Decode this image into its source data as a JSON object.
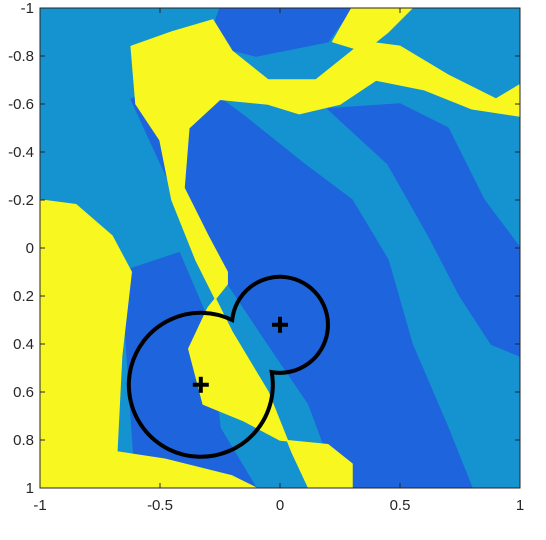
{
  "chart_data": {
    "type": "heatmap",
    "title": "",
    "xlabel": "",
    "ylabel": "",
    "xlim": [
      -1,
      1
    ],
    "ylim": [
      1,
      -1
    ],
    "y_reversed": true,
    "x_ticks": [
      -1,
      -0.5,
      0,
      0.5,
      1
    ],
    "x_tick_labels": [
      "-1",
      "-0.5",
      "0",
      "0.5",
      "1"
    ],
    "y_ticks": [
      -1,
      -0.8,
      -0.6,
      -0.4,
      -0.2,
      0,
      0.2,
      0.4,
      0.6,
      0.8,
      1
    ],
    "y_tick_labels": [
      "-1",
      "-0.8",
      "-0.6",
      "-0.4",
      "-0.2",
      "0",
      "0.2",
      "0.4",
      "0.6",
      "0.8",
      "1"
    ],
    "grid": false,
    "colors": {
      "light_blue": "#1592d0",
      "dark_blue": "#1e64dc",
      "yellow": "#f8f820",
      "outline": "#000000"
    },
    "regions": [
      {
        "name": "dark-band-left",
        "color": "dark_blue",
        "points": [
          [
            -0.6,
            1
          ],
          [
            -0.66,
            0.1
          ],
          [
            -0.42,
            0.02
          ],
          [
            -0.3,
            0.3
          ],
          [
            -0.25,
            0.75
          ],
          [
            -0.1,
            1
          ]
        ]
      },
      {
        "name": "dark-band-middle",
        "color": "dark_blue",
        "points": [
          [
            -0.62,
            -0.62
          ],
          [
            -0.38,
            -0.72
          ],
          [
            -0.15,
            -0.55
          ],
          [
            0.1,
            -0.35
          ],
          [
            0.3,
            -0.2
          ],
          [
            0.45,
            0.05
          ],
          [
            0.55,
            0.4
          ],
          [
            0.7,
            0.75
          ],
          [
            0.8,
            1
          ],
          [
            0.25,
            1
          ],
          [
            0.12,
            0.65
          ],
          [
            -0.05,
            0.4
          ],
          [
            -0.25,
            0.1
          ],
          [
            -0.45,
            -0.25
          ]
        ]
      },
      {
        "name": "dark-band-right",
        "color": "dark_blue",
        "points": [
          [
            0.2,
            -0.58
          ],
          [
            0.5,
            -0.6
          ],
          [
            0.7,
            -0.5
          ],
          [
            0.85,
            -0.2
          ],
          [
            1,
            0
          ],
          [
            1,
            0.45
          ],
          [
            0.88,
            0.4
          ],
          [
            0.75,
            0.2
          ],
          [
            0.62,
            -0.05
          ],
          [
            0.45,
            -0.35
          ]
        ]
      },
      {
        "name": "dark-band-top",
        "color": "dark_blue",
        "points": [
          [
            -0.25,
            -1
          ],
          [
            0.3,
            -1
          ],
          [
            0.2,
            -0.86
          ],
          [
            -0.1,
            -0.8
          ],
          [
            -0.3,
            -0.85
          ]
        ]
      },
      {
        "name": "yellow-left",
        "color": "yellow",
        "points": [
          [
            -1,
            -0.2
          ],
          [
            -0.85,
            -0.18
          ],
          [
            -0.7,
            -0.05
          ],
          [
            -0.62,
            0.1
          ],
          [
            -0.66,
            0.45
          ],
          [
            -0.68,
            0.85
          ],
          [
            -0.48,
            0.88
          ],
          [
            -0.2,
            0.95
          ],
          [
            -0.1,
            1
          ],
          [
            -1,
            1
          ]
        ]
      },
      {
        "name": "yellow-diagonal",
        "color": "yellow",
        "points": [
          [
            -0.62,
            -0.84
          ],
          [
            -0.45,
            -0.9
          ],
          [
            -0.28,
            -0.95
          ],
          [
            -0.2,
            -0.82
          ],
          [
            -0.05,
            -0.7
          ],
          [
            0.15,
            -0.7
          ],
          [
            0.35,
            -0.86
          ],
          [
            0.5,
            -0.84
          ],
          [
            0.7,
            -0.72
          ],
          [
            0.9,
            -0.62
          ],
          [
            1,
            -0.68
          ],
          [
            1,
            -0.55
          ],
          [
            0.8,
            -0.58
          ],
          [
            0.6,
            -0.66
          ],
          [
            0.4,
            -0.7
          ],
          [
            0.25,
            -0.6
          ],
          [
            0.08,
            -0.56
          ],
          [
            -0.05,
            -0.6
          ],
          [
            -0.25,
            -0.62
          ],
          [
            -0.38,
            -0.5
          ],
          [
            -0.4,
            -0.25
          ],
          [
            -0.3,
            -0.05
          ],
          [
            -0.22,
            0.1
          ],
          [
            -0.22,
            0.15
          ],
          [
            -0.3,
            0.25
          ],
          [
            -0.38,
            0.42
          ],
          [
            -0.32,
            0.65
          ],
          [
            -0.15,
            0.72
          ],
          [
            0.0,
            0.8
          ],
          [
            0.2,
            0.82
          ],
          [
            0.3,
            0.9
          ],
          [
            0.3,
            1
          ],
          [
            0.12,
            1
          ],
          [
            0.05,
            0.85
          ],
          [
            -0.05,
            0.6
          ],
          [
            -0.2,
            0.35
          ],
          [
            -0.35,
            0.05
          ],
          [
            -0.45,
            -0.2
          ],
          [
            -0.5,
            -0.45
          ],
          [
            -0.6,
            -0.6
          ]
        ]
      },
      {
        "name": "yellow-top-right",
        "color": "yellow",
        "points": [
          [
            0.3,
            -1
          ],
          [
            0.55,
            -1
          ],
          [
            0.45,
            -0.9
          ],
          [
            0.35,
            -0.82
          ],
          [
            0.22,
            -0.86
          ]
        ]
      }
    ],
    "circles": [
      {
        "cx": -0.33,
        "cy": 0.57,
        "r": 0.3
      },
      {
        "cx": 0.0,
        "cy": 0.32,
        "r": 0.2
      }
    ],
    "markers": [
      {
        "x": -0.33,
        "y": 0.57,
        "symbol": "+"
      },
      {
        "x": 0.0,
        "y": 0.32,
        "symbol": "+"
      }
    ]
  }
}
